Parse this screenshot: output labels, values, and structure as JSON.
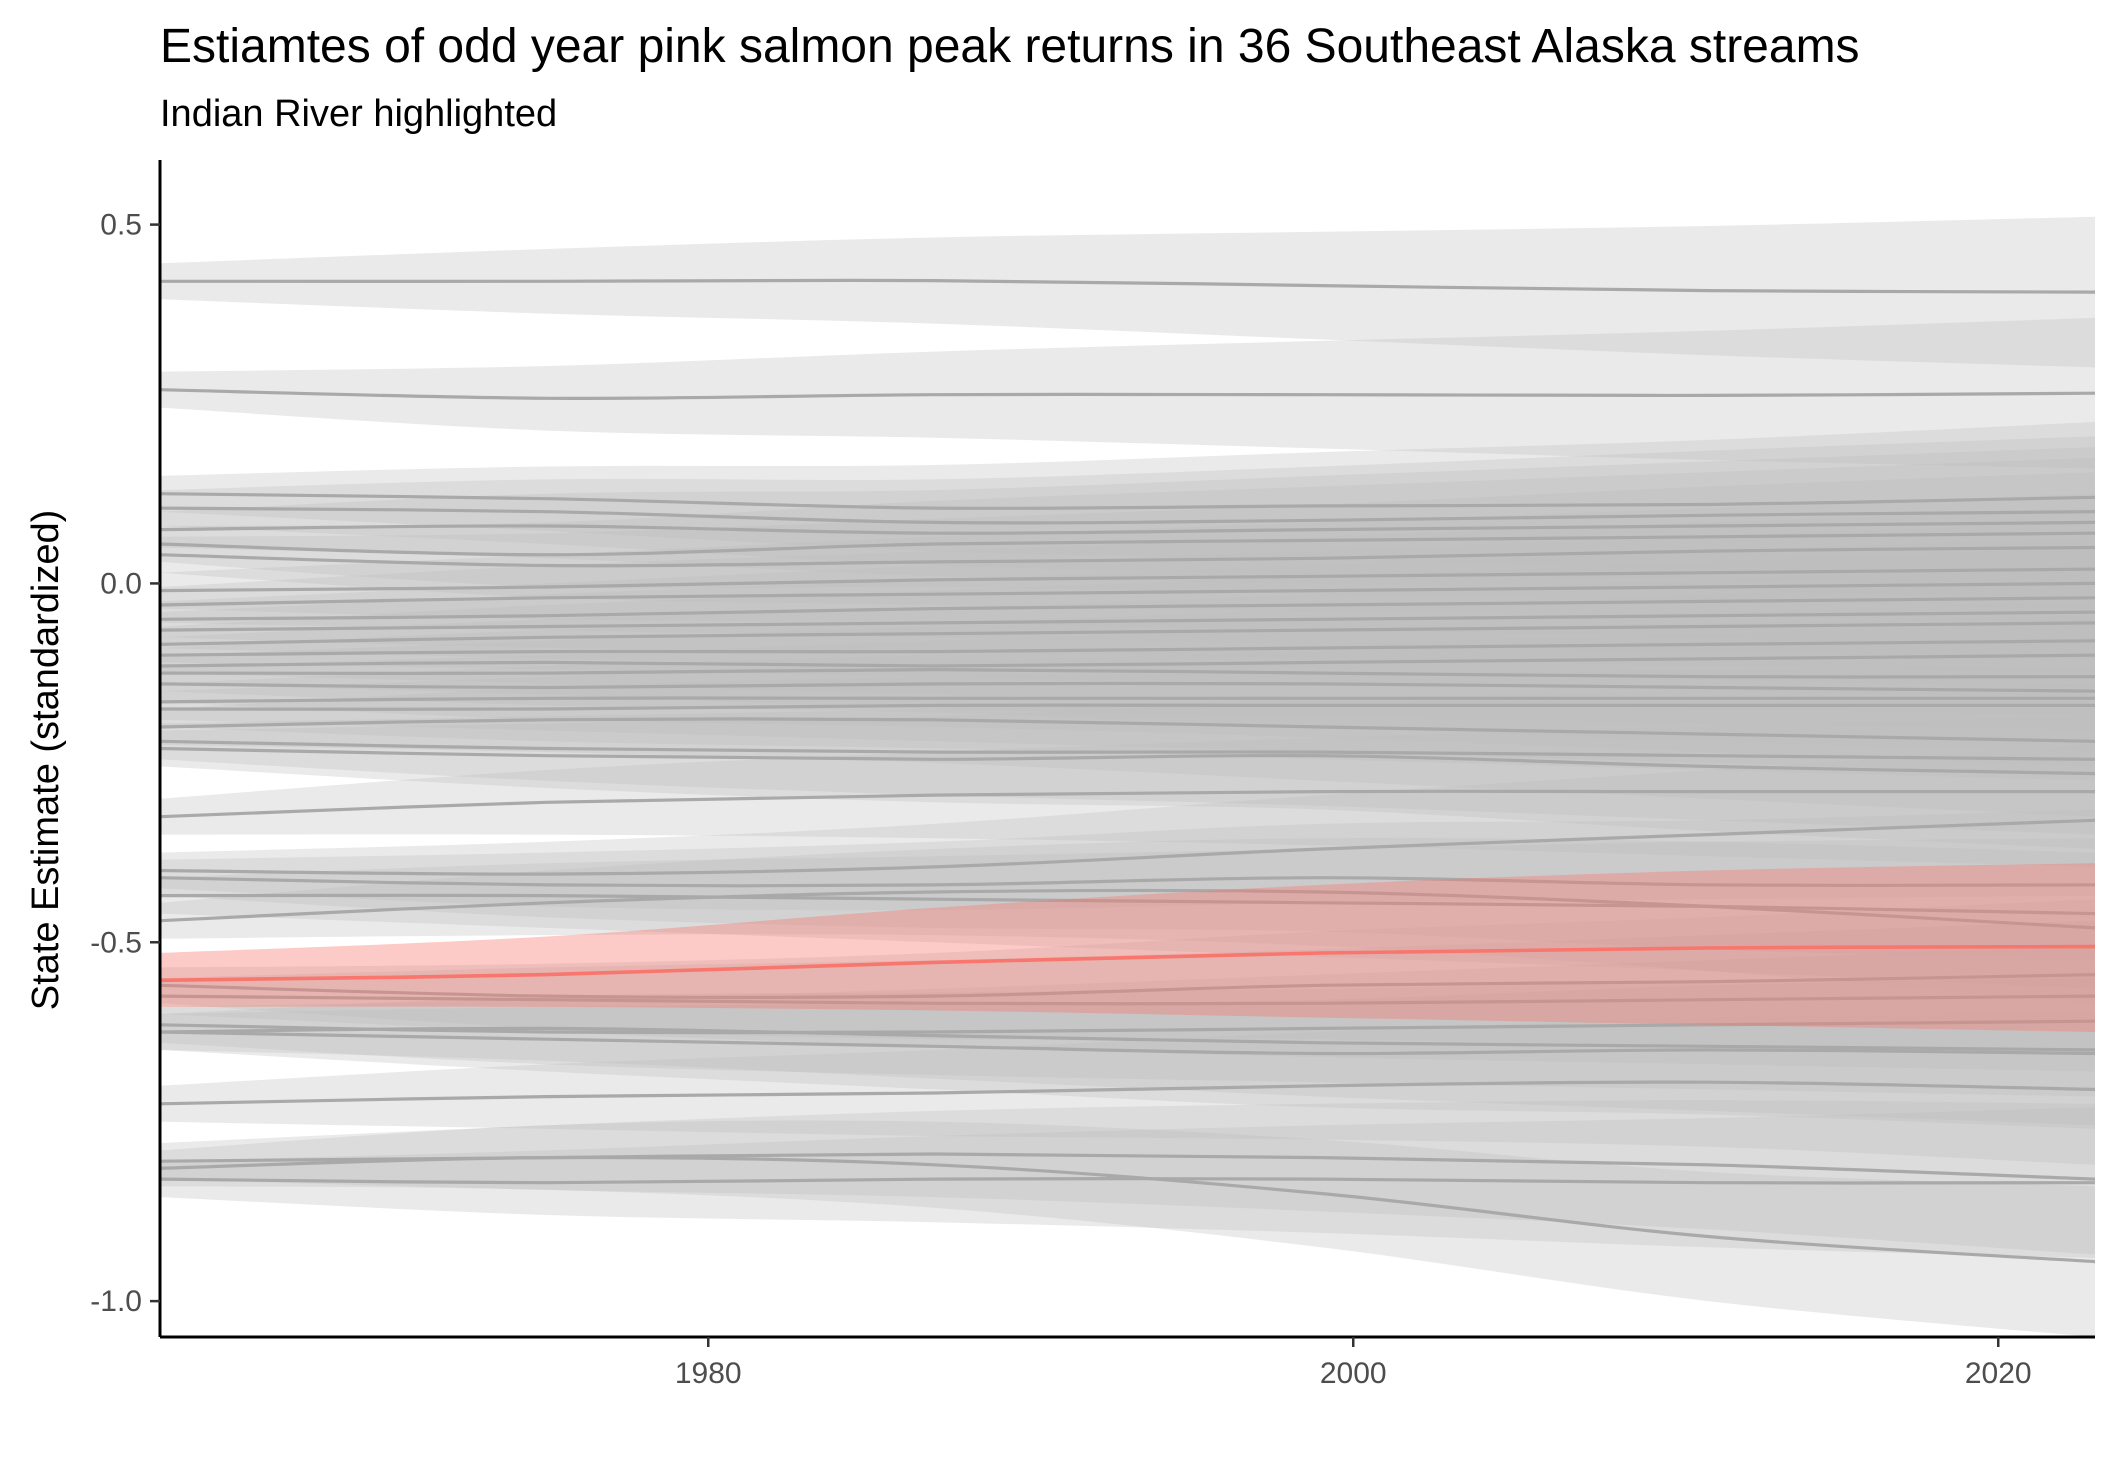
{
  "chart_data": {
    "type": "line",
    "title": "Estiamtes of odd year pink salmon peak returns in 36 Southeast Alaska streams",
    "subtitle": "Indian River highlighted",
    "xlabel": "",
    "ylabel": "State Estimate (standardized)",
    "xlim": [
      1963,
      2023
    ],
    "ylim": [
      -1.05,
      0.59
    ],
    "x_ticks": [
      1980,
      2000,
      2020
    ],
    "x_tick_labels": [
      "1980",
      "2000",
      "2020"
    ],
    "y_ticks": [
      -1.0,
      -0.5,
      0.0,
      0.5
    ],
    "y_tick_labels": [
      "-1.0",
      "-0.5",
      "0.0",
      "0.5"
    ],
    "grid": false,
    "legend": "none",
    "colors": {
      "background_series_line": "#a9a9a9",
      "background_series_band": "#bdbdbd",
      "highlight_line": "#f8766d",
      "highlight_band": "#f8766d",
      "axis": "#000000"
    },
    "x": [
      1963,
      1975,
      1987,
      1999,
      2011,
      2023
    ],
    "highlight": {
      "name": "Indian River",
      "values": [
        -0.553,
        -0.545,
        -0.528,
        -0.515,
        -0.508,
        -0.506
      ],
      "upper": [
        -0.515,
        -0.492,
        -0.452,
        -0.42,
        -0.4,
        -0.39
      ],
      "lower": [
        -0.59,
        -0.59,
        -0.595,
        -0.605,
        -0.615,
        -0.625
      ]
    },
    "series": [
      {
        "values": [
          0.421,
          0.421,
          0.422,
          0.415,
          0.408,
          0.406
        ],
        "band": [
          0.025,
          0.045,
          0.06,
          0.075,
          0.09,
          0.105
        ]
      },
      {
        "values": [
          0.27,
          0.258,
          0.263,
          0.263,
          0.262,
          0.265
        ],
        "band": [
          0.025,
          0.045,
          0.06,
          0.075,
          0.09,
          0.105
        ]
      },
      {
        "values": [
          0.125,
          0.118,
          0.105,
          0.108,
          0.11,
          0.12
        ],
        "band": [
          0.025,
          0.045,
          0.06,
          0.075,
          0.09,
          0.105
        ]
      },
      {
        "values": [
          0.105,
          0.1,
          0.085,
          0.088,
          0.095,
          0.1
        ],
        "band": [
          0.025,
          0.045,
          0.06,
          0.075,
          0.09,
          0.105
        ]
      },
      {
        "values": [
          0.075,
          0.08,
          0.07,
          0.075,
          0.08,
          0.085
        ],
        "band": [
          0.025,
          0.045,
          0.06,
          0.075,
          0.09,
          0.105
        ]
      },
      {
        "values": [
          0.055,
          0.04,
          0.055,
          0.06,
          0.065,
          0.07
        ],
        "band": [
          0.025,
          0.045,
          0.06,
          0.075,
          0.09,
          0.105
        ]
      },
      {
        "values": [
          0.04,
          0.025,
          0.03,
          0.035,
          0.045,
          0.05
        ],
        "band": [
          0.025,
          0.045,
          0.06,
          0.075,
          0.09,
          0.105
        ]
      },
      {
        "values": [
          -0.01,
          -0.005,
          0.005,
          0.01,
          0.015,
          0.02
        ],
        "band": [
          0.025,
          0.045,
          0.06,
          0.075,
          0.09,
          0.105
        ]
      },
      {
        "values": [
          -0.03,
          -0.02,
          -0.015,
          -0.01,
          -0.005,
          0.0
        ],
        "band": [
          0.025,
          0.045,
          0.06,
          0.075,
          0.09,
          0.105
        ]
      },
      {
        "values": [
          -0.05,
          -0.045,
          -0.035,
          -0.03,
          -0.025,
          -0.02
        ],
        "band": [
          0.025,
          0.045,
          0.06,
          0.075,
          0.09,
          0.105
        ]
      },
      {
        "values": [
          -0.065,
          -0.06,
          -0.055,
          -0.05,
          -0.045,
          -0.04
        ],
        "band": [
          0.025,
          0.045,
          0.06,
          0.075,
          0.09,
          0.105
        ]
      },
      {
        "values": [
          -0.085,
          -0.075,
          -0.07,
          -0.065,
          -0.06,
          -0.055
        ],
        "band": [
          0.025,
          0.045,
          0.06,
          0.075,
          0.09,
          0.105
        ]
      },
      {
        "values": [
          -0.1,
          -0.095,
          -0.095,
          -0.09,
          -0.085,
          -0.08
        ],
        "band": [
          0.025,
          0.045,
          0.06,
          0.075,
          0.09,
          0.105
        ]
      },
      {
        "values": [
          -0.115,
          -0.11,
          -0.115,
          -0.11,
          -0.105,
          -0.1
        ],
        "band": [
          0.025,
          0.045,
          0.06,
          0.075,
          0.09,
          0.105
        ]
      },
      {
        "values": [
          -0.125,
          -0.125,
          -0.12,
          -0.125,
          -0.13,
          -0.13
        ],
        "band": [
          0.025,
          0.045,
          0.06,
          0.075,
          0.09,
          0.105
        ]
      },
      {
        "values": [
          -0.14,
          -0.145,
          -0.14,
          -0.14,
          -0.145,
          -0.15
        ],
        "band": [
          0.025,
          0.045,
          0.06,
          0.075,
          0.09,
          0.105
        ]
      },
      {
        "values": [
          -0.165,
          -0.16,
          -0.16,
          -0.16,
          -0.16,
          -0.16
        ],
        "band": [
          0.025,
          0.045,
          0.06,
          0.075,
          0.09,
          0.105
        ]
      },
      {
        "values": [
          -0.175,
          -0.175,
          -0.17,
          -0.17,
          -0.17,
          -0.17
        ],
        "band": [
          0.025,
          0.045,
          0.06,
          0.075,
          0.09,
          0.105
        ]
      },
      {
        "values": [
          -0.2,
          -0.19,
          -0.19,
          -0.2,
          -0.21,
          -0.22
        ],
        "band": [
          0.025,
          0.045,
          0.06,
          0.075,
          0.09,
          0.105
        ]
      },
      {
        "values": [
          -0.22,
          -0.23,
          -0.235,
          -0.235,
          -0.24,
          -0.245
        ],
        "band": [
          0.025,
          0.045,
          0.06,
          0.075,
          0.09,
          0.105
        ]
      },
      {
        "values": [
          -0.23,
          -0.24,
          -0.245,
          -0.24,
          -0.255,
          -0.265
        ],
        "band": [
          0.025,
          0.045,
          0.06,
          0.075,
          0.09,
          0.105
        ]
      },
      {
        "values": [
          -0.325,
          -0.305,
          -0.295,
          -0.29,
          -0.29,
          -0.29
        ],
        "band": [
          0.025,
          0.045,
          0.06,
          0.075,
          0.09,
          0.105
        ]
      },
      {
        "values": [
          -0.4,
          -0.405,
          -0.395,
          -0.37,
          -0.35,
          -0.33
        ],
        "band": [
          0.025,
          0.045,
          0.06,
          0.075,
          0.09,
          0.105
        ]
      },
      {
        "values": [
          -0.41,
          -0.42,
          -0.42,
          -0.41,
          -0.42,
          -0.42
        ],
        "band": [
          0.025,
          0.045,
          0.06,
          0.075,
          0.09,
          0.105
        ]
      },
      {
        "values": [
          -0.435,
          -0.435,
          -0.44,
          -0.445,
          -0.45,
          -0.46
        ],
        "band": [
          0.025,
          0.045,
          0.06,
          0.075,
          0.09,
          0.105
        ]
      },
      {
        "values": [
          -0.47,
          -0.445,
          -0.43,
          -0.43,
          -0.45,
          -0.48
        ],
        "band": [
          0.025,
          0.045,
          0.06,
          0.075,
          0.09,
          0.105
        ]
      },
      {
        "values": [
          -0.56,
          -0.575,
          -0.575,
          -0.56,
          -0.555,
          -0.545
        ],
        "band": [
          0.025,
          0.045,
          0.06,
          0.075,
          0.09,
          0.105
        ]
      },
      {
        "values": [
          -0.575,
          -0.58,
          -0.585,
          -0.585,
          -0.58,
          -0.575
        ],
        "band": [
          0.025,
          0.045,
          0.06,
          0.075,
          0.09,
          0.105
        ]
      },
      {
        "values": [
          -0.615,
          -0.625,
          -0.625,
          -0.62,
          -0.615,
          -0.61
        ],
        "band": [
          0.025,
          0.045,
          0.06,
          0.075,
          0.09,
          0.105
        ]
      },
      {
        "values": [
          -0.625,
          -0.62,
          -0.63,
          -0.64,
          -0.645,
          -0.65
        ],
        "band": [
          0.025,
          0.045,
          0.06,
          0.075,
          0.09,
          0.105
        ]
      },
      {
        "values": [
          -0.625,
          -0.635,
          -0.645,
          -0.655,
          -0.65,
          -0.655
        ],
        "band": [
          0.025,
          0.045,
          0.06,
          0.075,
          0.09,
          0.105
        ]
      },
      {
        "values": [
          -0.725,
          -0.715,
          -0.71,
          -0.7,
          -0.695,
          -0.705
        ],
        "band": [
          0.025,
          0.045,
          0.06,
          0.075,
          0.09,
          0.105
        ]
      },
      {
        "values": [
          -0.805,
          -0.8,
          -0.795,
          -0.8,
          -0.81,
          -0.83
        ],
        "band": [
          0.025,
          0.045,
          0.06,
          0.075,
          0.09,
          0.105
        ]
      },
      {
        "values": [
          -0.815,
          -0.8,
          -0.81,
          -0.85,
          -0.91,
          -0.945
        ],
        "band": [
          0.025,
          0.045,
          0.06,
          0.075,
          0.09,
          0.105
        ]
      },
      {
        "values": [
          -0.83,
          -0.835,
          -0.83,
          -0.83,
          -0.835,
          -0.835
        ],
        "band": [
          0.025,
          0.045,
          0.06,
          0.075,
          0.09,
          0.105
        ]
      }
    ]
  }
}
